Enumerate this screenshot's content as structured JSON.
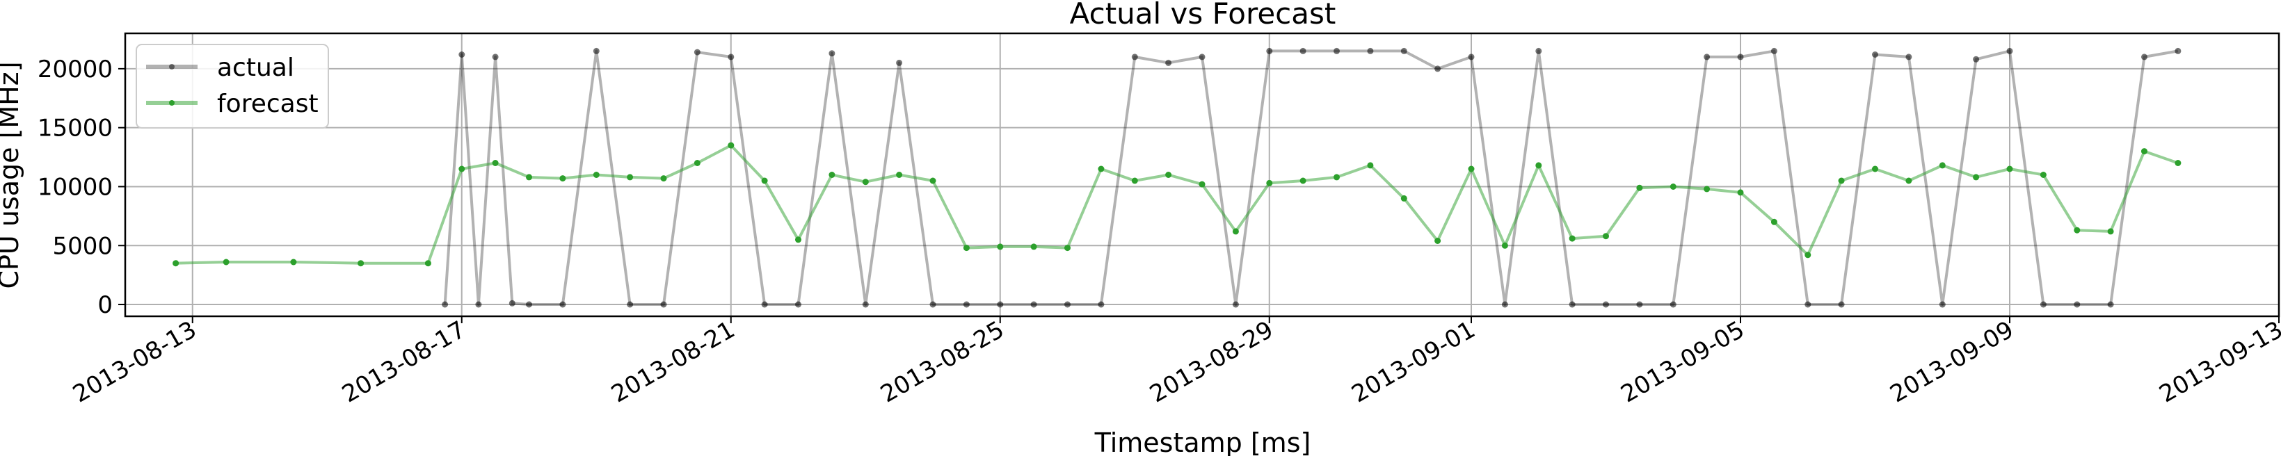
{
  "chart_data": {
    "type": "line",
    "title": "Actual vs Forecast",
    "xlabel": "Timestamp [ms]",
    "ylabel": "CPU usage [MHz]",
    "x_ticks": [
      "2013-08-13",
      "2013-08-17",
      "2013-08-21",
      "2013-08-25",
      "2013-08-29",
      "2013-09-01",
      "2013-09-05",
      "2013-09-09",
      "2013-09-13"
    ],
    "y_ticks": [
      0,
      5000,
      10000,
      15000,
      20000
    ],
    "xlim": [
      "2013-08-12",
      "2013-09-13"
    ],
    "ylim": [
      -1000,
      23000
    ],
    "grid": true,
    "legend": {
      "placement": "top-left",
      "entries": [
        "actual",
        "forecast"
      ]
    },
    "series": [
      {
        "name": "actual",
        "color": "#000000",
        "x": [
          "2013-08-16 18:00",
          "2013-08-17 00:00",
          "2013-08-17 06:00",
          "2013-08-17 12:00",
          "2013-08-17 18:00",
          "2013-08-18 00:00",
          "2013-08-18 12:00",
          "2013-08-19 00:00",
          "2013-08-19 12:00",
          "2013-08-20 00:00",
          "2013-08-20 12:00",
          "2013-08-21 00:00",
          "2013-08-21 12:00",
          "2013-08-22 00:00",
          "2013-08-22 12:00",
          "2013-08-23 00:00",
          "2013-08-23 12:00",
          "2013-08-24 00:00",
          "2013-08-24 12:00",
          "2013-08-25 00:00",
          "2013-08-25 12:00",
          "2013-08-26 00:00",
          "2013-08-26 12:00",
          "2013-08-27 00:00",
          "2013-08-27 12:00",
          "2013-08-28 00:00",
          "2013-08-28 12:00",
          "2013-08-29 00:00",
          "2013-08-29 12:00",
          "2013-08-30 00:00",
          "2013-08-30 12:00",
          "2013-08-31 00:00",
          "2013-08-31 12:00",
          "2013-09-01 00:00",
          "2013-09-01 12:00",
          "2013-09-02 00:00",
          "2013-09-02 12:00",
          "2013-09-03 00:00",
          "2013-09-03 12:00",
          "2013-09-04 00:00",
          "2013-09-04 12:00",
          "2013-09-05 00:00",
          "2013-09-05 12:00",
          "2013-09-06 00:00",
          "2013-09-06 12:00",
          "2013-09-07 00:00",
          "2013-09-07 12:00",
          "2013-09-08 00:00",
          "2013-09-08 12:00",
          "2013-09-09 00:00",
          "2013-09-09 12:00",
          "2013-09-10 00:00",
          "2013-09-10 12:00",
          "2013-09-11 00:00",
          "2013-09-11 12:00"
        ],
        "values": [
          0,
          21200,
          0,
          21000,
          100,
          0,
          0,
          21500,
          0,
          0,
          21400,
          21000,
          0,
          0,
          21300,
          0,
          20500,
          0,
          0,
          0,
          0,
          0,
          0,
          21000,
          20500,
          21000,
          0,
          21500,
          21500,
          21500,
          21500,
          21500,
          20000,
          21000,
          0,
          21500,
          0,
          0,
          0,
          0,
          21000,
          21000,
          21500,
          0,
          0,
          21200,
          21000,
          0,
          20800,
          21500,
          0,
          0,
          0,
          21000,
          21500
        ]
      },
      {
        "name": "forecast",
        "color": "#2ca02c",
        "x": [
          "2013-08-12 18:00",
          "2013-08-13 12:00",
          "2013-08-14 12:00",
          "2013-08-15 12:00",
          "2013-08-16 12:00",
          "2013-08-17 00:00",
          "2013-08-17 12:00",
          "2013-08-18 00:00",
          "2013-08-18 12:00",
          "2013-08-19 00:00",
          "2013-08-19 12:00",
          "2013-08-20 00:00",
          "2013-08-20 12:00",
          "2013-08-21 00:00",
          "2013-08-21 12:00",
          "2013-08-22 00:00",
          "2013-08-22 12:00",
          "2013-08-23 00:00",
          "2013-08-23 12:00",
          "2013-08-24 00:00",
          "2013-08-24 12:00",
          "2013-08-25 00:00",
          "2013-08-25 12:00",
          "2013-08-26 00:00",
          "2013-08-26 12:00",
          "2013-08-27 00:00",
          "2013-08-27 12:00",
          "2013-08-28 00:00",
          "2013-08-28 12:00",
          "2013-08-29 00:00",
          "2013-08-29 12:00",
          "2013-08-30 00:00",
          "2013-08-30 12:00",
          "2013-08-31 00:00",
          "2013-08-31 12:00",
          "2013-09-01 00:00",
          "2013-09-01 12:00",
          "2013-09-02 00:00",
          "2013-09-02 12:00",
          "2013-09-03 00:00",
          "2013-09-03 12:00",
          "2013-09-04 00:00",
          "2013-09-04 12:00",
          "2013-09-05 00:00",
          "2013-09-05 12:00",
          "2013-09-06 00:00",
          "2013-09-06 12:00",
          "2013-09-07 00:00",
          "2013-09-07 12:00",
          "2013-09-08 00:00",
          "2013-09-08 12:00",
          "2013-09-09 00:00",
          "2013-09-09 12:00",
          "2013-09-10 00:00",
          "2013-09-10 12:00",
          "2013-09-11 00:00",
          "2013-09-11 12:00"
        ],
        "values": [
          3500,
          3600,
          3600,
          3500,
          3500,
          11500,
          12000,
          10800,
          10700,
          11000,
          10800,
          10700,
          12000,
          13500,
          10500,
          5500,
          11000,
          10400,
          11000,
          10500,
          4800,
          4900,
          4900,
          4800,
          11500,
          10500,
          11000,
          10200,
          6200,
          10300,
          10500,
          10800,
          11800,
          9000,
          5400,
          11500,
          5000,
          11800,
          5600,
          5800,
          9900,
          10000,
          9800,
          9500,
          7000,
          4200,
          10500,
          11500,
          10500,
          11800,
          10800,
          11500,
          11000,
          6300,
          6200,
          13000,
          12000
        ]
      }
    ]
  }
}
